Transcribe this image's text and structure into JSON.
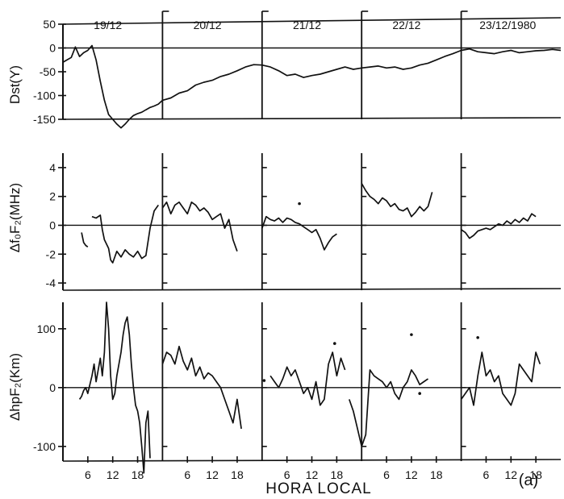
{
  "chart_data": [
    {
      "type": "line",
      "panel": "dst",
      "ylabel": "Dst(Y)",
      "ylim": [
        -150,
        50
      ],
      "yticks": [
        50,
        0,
        -50,
        -100,
        -150
      ],
      "day_labels": [
        "19/12",
        "20/12",
        "21/12",
        "22/12",
        "23/12/1980"
      ],
      "series": [
        {
          "x": [
            0,
            1,
            2,
            3,
            4,
            5,
            6,
            7,
            8,
            9,
            10,
            11,
            12,
            13,
            14,
            15,
            16,
            17,
            18,
            19,
            20,
            21,
            22,
            23,
            24,
            26,
            28,
            30,
            32,
            34,
            36,
            38,
            40,
            42,
            44,
            46,
            48,
            50,
            52,
            54,
            56,
            58,
            60,
            62,
            64,
            66,
            68,
            70,
            72,
            74,
            76,
            78,
            80,
            82,
            84,
            86,
            88,
            90,
            92,
            94,
            96,
            98,
            100,
            102,
            104,
            106,
            108,
            110,
            112,
            114,
            116,
            118,
            120
          ],
          "y": [
            -30,
            -25,
            -20,
            2,
            -18,
            -10,
            -5,
            5,
            -25,
            -70,
            -110,
            -140,
            -150,
            -160,
            -168,
            -160,
            -150,
            -142,
            -138,
            -135,
            -130,
            -125,
            -122,
            -118,
            -110,
            -105,
            -95,
            -90,
            -78,
            -72,
            -68,
            -60,
            -55,
            -48,
            -40,
            -35,
            -36,
            -40,
            -48,
            -58,
            -55,
            -62,
            -58,
            -55,
            -50,
            -45,
            -40,
            -45,
            -42,
            -40,
            -38,
            -42,
            -40,
            -45,
            -42,
            -36,
            -32,
            -25,
            -18,
            -12,
            -5,
            -2,
            -8,
            -10,
            -12,
            -8,
            -5,
            -10,
            -8,
            -6,
            -5,
            -3,
            -5
          ]
        }
      ]
    },
    {
      "type": "line",
      "panel": "fof2",
      "ylabel": "Δf₀F₂(MHz)",
      "ylim": [
        -4.5,
        5
      ],
      "yticks": [
        4,
        2,
        0,
        -2,
        -4
      ],
      "series": [
        {
          "x": [
            4.5,
            5,
            5.5,
            6
          ],
          "y": [
            -0.5,
            -1.2,
            -1.4,
            -1.5
          ]
        },
        {
          "x": [
            7,
            8,
            9,
            9.5,
            10,
            11,
            11.5,
            12,
            13,
            14,
            15,
            16,
            17,
            18,
            19,
            20,
            21,
            22,
            23
          ],
          "y": [
            0.6,
            0.5,
            0.7,
            -0.3,
            -1.0,
            -1.6,
            -2.4,
            -2.6,
            -1.8,
            -2.2,
            -1.7,
            -2.0,
            -2.2,
            -1.8,
            -2.3,
            -2.1,
            -0.2,
            1.0,
            1.4
          ]
        },
        {
          "x": [
            24,
            25,
            26,
            27,
            28,
            29,
            30,
            31,
            32,
            33,
            34,
            35,
            36,
            37,
            38,
            39,
            40,
            41,
            42
          ],
          "y": [
            1.2,
            1.6,
            0.8,
            1.4,
            1.6,
            1.2,
            0.8,
            1.6,
            1.4,
            1.0,
            1.2,
            0.9,
            0.4,
            0.6,
            0.8,
            -0.2,
            0.4,
            -1.0,
            -1.8
          ]
        },
        {
          "x": [
            48,
            49,
            50,
            51,
            52,
            53,
            54,
            55,
            56,
            57,
            58,
            59,
            60,
            61,
            62,
            63,
            64,
            65,
            66
          ],
          "y": [
            -0.2,
            0.6,
            0.4,
            0.3,
            0.5,
            0.2,
            0.5,
            0.4,
            0.2,
            0.1,
            -0.1,
            -0.3,
            -0.5,
            -0.3,
            -0.9,
            -1.7,
            -1.2,
            -0.8,
            -0.6
          ]
        },
        {
          "x": [
            57
          ],
          "y": [
            1.5
          ]
        },
        {
          "x": [
            72,
            73,
            74,
            75,
            76,
            77,
            78,
            79,
            80,
            81,
            82,
            83,
            84,
            85,
            86,
            87,
            88,
            89
          ],
          "y": [
            2.9,
            2.4,
            2.0,
            1.8,
            1.5,
            1.9,
            1.7,
            1.3,
            1.5,
            1.1,
            1.0,
            1.2,
            0.6,
            0.9,
            1.3,
            1.0,
            1.3,
            2.3
          ]
        },
        {
          "x": [
            96,
            97,
            98,
            99,
            100,
            101,
            102,
            103,
            104,
            105,
            106,
            107,
            108,
            109,
            110,
            111,
            112,
            113,
            114
          ],
          "y": [
            -0.3,
            -0.5,
            -0.9,
            -0.7,
            -0.4,
            -0.3,
            -0.2,
            -0.3,
            -0.1,
            0.1,
            0.0,
            0.3,
            0.1,
            0.4,
            0.2,
            0.5,
            0.3,
            0.8,
            0.6
          ]
        }
      ]
    },
    {
      "type": "line",
      "panel": "hpf2",
      "ylabel": "ΔhpF₂(Km)",
      "ylim": [
        -125,
        145
      ],
      "yticks": [
        100,
        0,
        -100
      ],
      "xticks": [
        6,
        12,
        18,
        30,
        36,
        42,
        54,
        60,
        66,
        78,
        84,
        90,
        102,
        108,
        114
      ],
      "xticklabels": [
        "6",
        "12",
        "18",
        "6",
        "12",
        "18",
        "6",
        "12",
        "18",
        "6",
        "12",
        "18",
        "6",
        "12",
        "18"
      ],
      "xlabel": "HORA LOCAL",
      "panel_letter": "(a)",
      "xlim": [
        0,
        120
      ],
      "series": [
        {
          "x": [
            4,
            4.5,
            5,
            5.5,
            6,
            6.5,
            7,
            7.5,
            8,
            8.5,
            9,
            9.5,
            10,
            10.5,
            11,
            11.5,
            12,
            12.5,
            13,
            13.5,
            14,
            14.5,
            15,
            15.5,
            16,
            16.5,
            17,
            17.5,
            18,
            18.5,
            19,
            19.5,
            20,
            20.5,
            21
          ],
          "y": [
            -20,
            -15,
            -5,
            0,
            -10,
            5,
            20,
            40,
            10,
            30,
            50,
            20,
            60,
            145,
            100,
            20,
            -20,
            -10,
            20,
            40,
            60,
            90,
            110,
            120,
            90,
            40,
            0,
            -30,
            -40,
            -60,
            -100,
            -145,
            -60,
            -40,
            -120
          ]
        },
        {
          "x": [
            24,
            25,
            26,
            27,
            28,
            29,
            30,
            31,
            32,
            33,
            34,
            35,
            36,
            37,
            38,
            39,
            40,
            41,
            42,
            43
          ],
          "y": [
            40,
            60,
            55,
            40,
            70,
            45,
            30,
            50,
            20,
            35,
            15,
            25,
            20,
            10,
            0,
            -20,
            -40,
            -60,
            -20,
            -70
          ]
        },
        {
          "x": [
            48.5
          ],
          "y": [
            12
          ]
        },
        {
          "x": [
            50,
            51,
            52,
            53,
            54,
            55,
            56,
            57,
            58,
            59,
            60,
            61,
            62,
            63,
            64,
            65,
            66,
            67,
            68
          ],
          "y": [
            20,
            10,
            0,
            15,
            35,
            20,
            30,
            10,
            -10,
            0,
            -20,
            10,
            -30,
            -20,
            40,
            60,
            20,
            50,
            30
          ]
        },
        {
          "x": [
            65.5
          ],
          "y": [
            75
          ]
        },
        {
          "x": [
            69,
            70,
            71,
            72,
            73,
            74,
            75,
            76,
            77,
            78,
            79,
            80,
            81,
            82,
            83,
            84,
            85,
            86,
            87,
            88
          ],
          "y": [
            -20,
            -40,
            -70,
            -100,
            -80,
            30,
            20,
            15,
            10,
            0,
            10,
            -10,
            -20,
            0,
            10,
            30,
            20,
            5,
            10,
            15
          ]
        },
        {
          "x": [
            86
          ],
          "y": [
            -10
          ]
        },
        {
          "x": [
            96,
            97,
            98,
            99,
            100,
            101,
            102,
            103,
            104,
            105,
            106,
            107,
            108,
            109,
            110,
            111,
            112,
            113,
            114,
            115
          ],
          "y": [
            -20,
            -10,
            0,
            -30,
            20,
            60,
            20,
            30,
            10,
            20,
            -10,
            -20,
            -30,
            -10,
            40,
            30,
            20,
            10,
            60,
            40
          ]
        },
        {
          "x": [
            84
          ],
          "y": [
            90
          ]
        },
        {
          "x": [
            100
          ],
          "y": [
            85
          ]
        }
      ]
    }
  ]
}
